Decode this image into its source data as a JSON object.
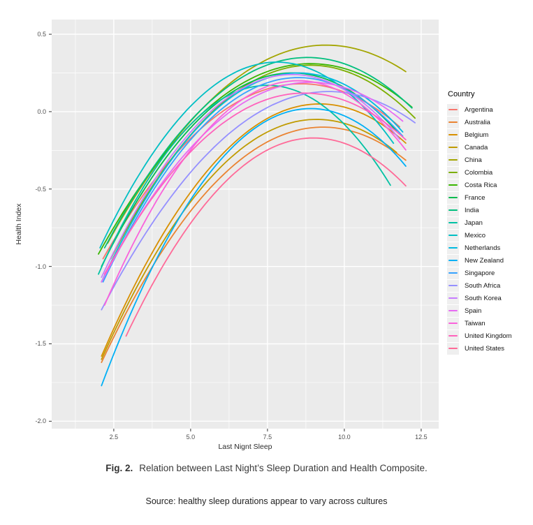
{
  "chart_data": {
    "type": "line",
    "title": "",
    "xlabel": "Last Nignt Sleep",
    "ylabel": "Health Index",
    "legend_title": "Country",
    "legend_position": "right",
    "grid": true,
    "panel_bg": "#EBEBEB",
    "grid_color": "#FFFFFF",
    "legend_key_bg": "#EFEFEF",
    "xlim": [
      0.48,
      13.07
    ],
    "ylim": [
      -2.048,
      0.595
    ],
    "xticks": [
      2.5,
      5.0,
      7.5,
      10.0,
      12.5
    ],
    "xtick_labels": [
      "2.5",
      "5.0",
      "7.5",
      "10.0",
      "12.5"
    ],
    "yticks": [
      0.5,
      0.0,
      -0.5,
      -1.0,
      -1.5,
      -2.0
    ],
    "ytick_labels": [
      "0.5",
      "0.0",
      "-0.5",
      "-1.0",
      "-1.5",
      "-2.0"
    ],
    "x_minor": [
      1.25,
      3.75,
      6.25,
      8.75,
      11.25
    ],
    "y_minor": [
      0.25,
      -0.25,
      -0.75,
      -1.25,
      -1.75
    ],
    "curve_model": "quadratic fit per country: y = peak_y - a*(x - peak_x)^2 with a = (peak_y - y_start)/(x_start - peak_x)^2, drawn for x in [x_start, x_end]",
    "series": [
      {
        "name": "Argentina",
        "color": "#F8766D",
        "x_start": 2.15,
        "y_start": -0.95,
        "peak_x": 8.6,
        "peak_y": 0.18,
        "x_end": 11.8
      },
      {
        "name": "Australia",
        "color": "#EA8331",
        "x_start": 2.1,
        "y_start": -1.62,
        "peak_x": 9.3,
        "peak_y": -0.1,
        "x_end": 12.0
      },
      {
        "name": "Belgium",
        "color": "#D89000",
        "x_start": 2.1,
        "y_start": -1.58,
        "peak_x": 9.2,
        "peak_y": 0.05,
        "x_end": 12.0
      },
      {
        "name": "Canada",
        "color": "#C09B00",
        "x_start": 2.1,
        "y_start": -1.6,
        "peak_x": 9.1,
        "peak_y": -0.05,
        "x_end": 11.7
      },
      {
        "name": "China",
        "color": "#A3A500",
        "x_start": 2.3,
        "y_start": -0.85,
        "peak_x": 9.4,
        "peak_y": 0.43,
        "x_end": 12.0
      },
      {
        "name": "Colombia",
        "color": "#7CAE00",
        "x_start": 2.4,
        "y_start": -0.95,
        "peak_x": 8.9,
        "peak_y": 0.3,
        "x_end": 12.3
      },
      {
        "name": "Costa Rica",
        "color": "#39B600",
        "x_start": 2.0,
        "y_start": -0.92,
        "peak_x": 8.9,
        "peak_y": 0.31,
        "x_end": 12.2
      },
      {
        "name": "France",
        "color": "#00BB4E",
        "x_start": 2.1,
        "y_start": -1.0,
        "peak_x": 8.3,
        "peak_y": 0.25,
        "x_end": 11.7
      },
      {
        "name": "India",
        "color": "#00BF7D",
        "x_start": 2.2,
        "y_start": -0.88,
        "peak_x": 8.8,
        "peak_y": 0.35,
        "x_end": 12.2
      },
      {
        "name": "Japan",
        "color": "#00C1A3",
        "x_start": 2.0,
        "y_start": -1.05,
        "peak_x": 7.5,
        "peak_y": 0.17,
        "x_end": 11.5
      },
      {
        "name": "Mexico",
        "color": "#00BFC4",
        "x_start": 2.05,
        "y_start": -0.88,
        "peak_x": 7.8,
        "peak_y": 0.32,
        "x_end": 11.6
      },
      {
        "name": "Netherlands",
        "color": "#00BAE0",
        "x_start": 2.1,
        "y_start": -1.1,
        "peak_x": 8.5,
        "peak_y": 0.25,
        "x_end": 11.9
      },
      {
        "name": "New Zealand",
        "color": "#00B0F6",
        "x_start": 2.1,
        "y_start": -1.77,
        "peak_x": 8.9,
        "peak_y": 0.02,
        "x_end": 12.0
      },
      {
        "name": "Singapore",
        "color": "#35A2FF",
        "x_start": 2.15,
        "y_start": -1.1,
        "peak_x": 8.5,
        "peak_y": 0.22,
        "x_end": 11.9
      },
      {
        "name": "South Africa",
        "color": "#9590FF",
        "x_start": 2.1,
        "y_start": -1.28,
        "peak_x": 9.5,
        "peak_y": 0.13,
        "x_end": 12.3
      },
      {
        "name": "South Korea",
        "color": "#C77CFF",
        "x_start": 2.1,
        "y_start": -1.07,
        "peak_x": 8.3,
        "peak_y": 0.24,
        "x_end": 11.8
      },
      {
        "name": "Spain",
        "color": "#E76BF3",
        "x_start": 2.1,
        "y_start": -1.1,
        "peak_x": 8.9,
        "peak_y": 0.19,
        "x_end": 11.9
      },
      {
        "name": "Taiwan",
        "color": "#FA62DB",
        "x_start": 2.2,
        "y_start": -1.25,
        "peak_x": 8.5,
        "peak_y": 0.2,
        "x_end": 12.0
      },
      {
        "name": "United Kingdom",
        "color": "#FF62BC",
        "x_start": 2.2,
        "y_start": -1.05,
        "peak_x": 8.7,
        "peak_y": 0.12,
        "x_end": 12.0
      },
      {
        "name": "United States",
        "color": "#FF6A98",
        "x_start": 2.9,
        "y_start": -1.45,
        "peak_x": 9.0,
        "peak_y": -0.17,
        "x_end": 12.0
      }
    ]
  },
  "caption": {
    "label": "Fig. 2.",
    "text": "Relation between Last Night’s Sleep Duration and Health Composite."
  },
  "source_note": {
    "text": "Source: healthy sleep durations appear to vary across cultures"
  }
}
